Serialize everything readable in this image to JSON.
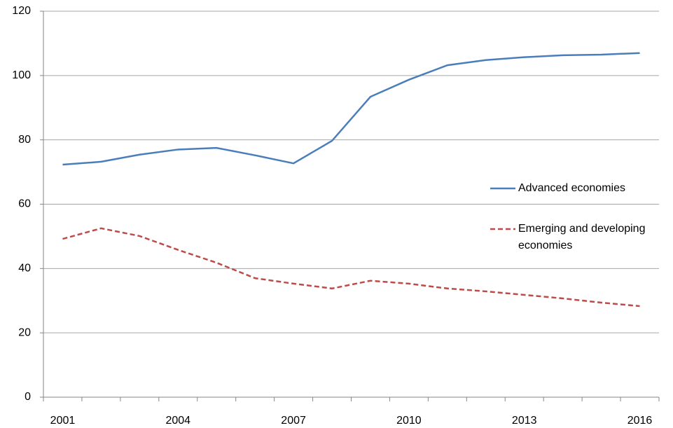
{
  "chart_data": {
    "type": "line",
    "categories": [
      "2001",
      null,
      null,
      "2004",
      null,
      null,
      "2007",
      null,
      null,
      "2010",
      null,
      null,
      "2013",
      null,
      null,
      "2016"
    ],
    "series": [
      {
        "name": "Advanced economies",
        "color": "#4a7ebb",
        "dash": false,
        "values": [
          72.3,
          73.2,
          75.4,
          77,
          77.5,
          75.2,
          72.7,
          79.7,
          93.4,
          98.7,
          103.2,
          104.8,
          105.7,
          106.3,
          106.5,
          107
        ]
      },
      {
        "name": "Emerging and developing economies",
        "color": "#be4b48",
        "dash": true,
        "values": [
          49.2,
          52.5,
          50.1,
          45.8,
          41.8,
          37,
          35.3,
          33.8,
          36.2,
          35.3,
          33.8,
          32.9,
          31.8,
          30.7,
          29.4,
          28.3
        ]
      }
    ],
    "ylim": [
      0,
      120
    ],
    "yticks": [
      0,
      20,
      40,
      60,
      80,
      100,
      120
    ],
    "grid": true,
    "legend": "right"
  }
}
